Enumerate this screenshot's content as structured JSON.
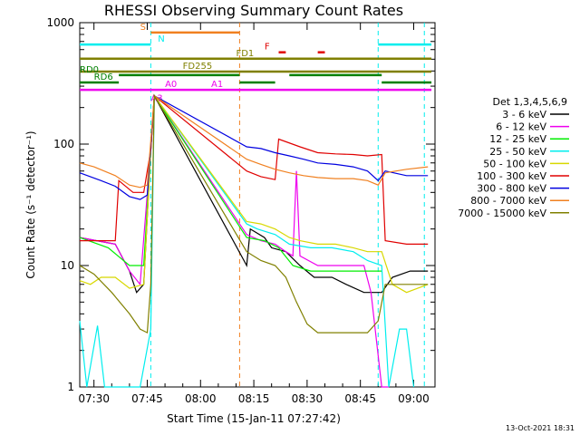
{
  "chart_data": {
    "type": "line",
    "title": "RHESSI Observing Summary Count Rates",
    "xlabel": "Start Time (15-Jan-11 07:27:42)",
    "ylabel": "Count Rate (s⁻¹ detector⁻¹)",
    "y_scale": "log",
    "ylim": [
      1,
      1000
    ],
    "xlim": [
      "07:26",
      "09:06"
    ],
    "x_ticks": [
      "07:30",
      "07:45",
      "08:00",
      "08:15",
      "08:30",
      "08:45",
      "09:00"
    ],
    "y_ticks": [
      "1",
      "10",
      "100",
      "1000"
    ],
    "timestamp": "13-Oct-2021 18:31",
    "legend": {
      "title": "Det 1,3,4,5,6,9",
      "position": "right",
      "entries": [
        {
          "label": "3 - 6 keV",
          "color": "#000000"
        },
        {
          "label": "6 - 12 keV",
          "color": "#ee00ee"
        },
        {
          "label": "12 - 25 keV",
          "color": "#00ee00"
        },
        {
          "label": "25 - 50 keV",
          "color": "#00eeee"
        },
        {
          "label": "50 - 100 keV",
          "color": "#d8d800"
        },
        {
          "label": "100 - 300 keV",
          "color": "#e00000"
        },
        {
          "label": "300 - 800 keV",
          "color": "#0000e0"
        },
        {
          "label": "800 - 7000 keV",
          "color": "#f08020"
        },
        {
          "label": "7000 - 15000 keV",
          "color": "#808000"
        }
      ]
    },
    "series": [
      {
        "label": "3 - 6 keV",
        "color": "#000000",
        "points": [
          [
            "07:26",
            17
          ],
          [
            "07:36",
            15
          ],
          [
            "07:40",
            9
          ],
          [
            "07:42",
            6
          ],
          [
            "07:44",
            7
          ],
          [
            "07:46",
            90
          ],
          [
            "07:47",
            250
          ],
          [
            "08:13",
            10
          ],
          [
            "08:14",
            20
          ],
          [
            "08:18",
            17
          ],
          [
            "08:20",
            14
          ],
          [
            "08:24",
            13
          ],
          [
            "08:28",
            10
          ],
          [
            "08:32",
            8
          ],
          [
            "08:37",
            8
          ],
          [
            "08:41",
            7
          ],
          [
            "08:46",
            6
          ],
          [
            "08:51",
            6
          ],
          [
            "08:54",
            8
          ],
          [
            "08:59",
            9
          ],
          [
            "09:04",
            9
          ]
        ]
      },
      {
        "label": "6 - 12 keV",
        "color": "#ee00ee",
        "points": [
          [
            "07:26",
            17
          ],
          [
            "07:36",
            15
          ],
          [
            "07:40",
            9
          ],
          [
            "07:43",
            7
          ],
          [
            "07:46",
            90
          ],
          [
            "07:47",
            250
          ],
          [
            "08:13",
            18
          ],
          [
            "08:17",
            16
          ],
          [
            "08:21",
            15
          ],
          [
            "08:24",
            13
          ],
          [
            "08:26",
            12
          ],
          [
            "08:27",
            60
          ],
          [
            "08:28",
            12
          ],
          [
            "08:33",
            10
          ],
          [
            "08:38",
            10
          ],
          [
            "08:43",
            10
          ],
          [
            "08:46",
            10
          ],
          [
            "08:48",
            6
          ],
          [
            "08:51",
            1
          ],
          [
            "08:53",
            1
          ]
        ]
      },
      {
        "label": "12 - 25 keV",
        "color": "#00ee00",
        "points": [
          [
            "07:26",
            17
          ],
          [
            "07:34",
            14
          ],
          [
            "07:40",
            10
          ],
          [
            "07:44",
            10
          ],
          [
            "07:46",
            90
          ],
          [
            "07:47",
            250
          ],
          [
            "08:13",
            17
          ],
          [
            "08:18",
            16
          ],
          [
            "08:22",
            14
          ],
          [
            "08:26",
            10
          ],
          [
            "08:31",
            9
          ],
          [
            "08:37",
            9
          ],
          [
            "08:42",
            9
          ],
          [
            "08:47",
            9
          ],
          [
            "08:51",
            9
          ]
        ]
      },
      {
        "label": "25 - 50 keV",
        "color": "#00eeee",
        "points": [
          [
            "07:26",
            3.5
          ],
          [
            "07:28",
            1
          ],
          [
            "07:31",
            3.2
          ],
          [
            "07:33",
            1
          ],
          [
            "07:38",
            1
          ],
          [
            "07:43",
            1
          ],
          [
            "07:46",
            3
          ],
          [
            "07:47",
            250
          ],
          [
            "08:13",
            22
          ],
          [
            "08:16",
            20
          ],
          [
            "08:21",
            18
          ],
          [
            "08:25",
            15
          ],
          [
            "08:31",
            14
          ],
          [
            "08:37",
            14
          ],
          [
            "08:43",
            13
          ],
          [
            "08:47",
            11
          ],
          [
            "08:51",
            10
          ],
          [
            "08:53",
            1
          ],
          [
            "08:56",
            3
          ],
          [
            "08:58",
            3
          ],
          [
            "09:00",
            1
          ]
        ]
      },
      {
        "label": "50 - 100 keV",
        "color": "#d8d800",
        "points": [
          [
            "07:26",
            7.5
          ],
          [
            "07:29",
            7
          ],
          [
            "07:32",
            8
          ],
          [
            "07:36",
            8
          ],
          [
            "07:40",
            6.5
          ],
          [
            "07:44",
            7
          ],
          [
            "07:46",
            90
          ],
          [
            "07:47",
            250
          ],
          [
            "08:13",
            23
          ],
          [
            "08:17",
            22
          ],
          [
            "08:21",
            20
          ],
          [
            "08:25",
            17
          ],
          [
            "08:28",
            16
          ],
          [
            "08:33",
            15
          ],
          [
            "08:38",
            15
          ],
          [
            "08:43",
            14
          ],
          [
            "08:47",
            13
          ],
          [
            "08:51",
            13
          ],
          [
            "08:54",
            7
          ],
          [
            "08:58",
            6
          ],
          [
            "09:04",
            7
          ]
        ]
      },
      {
        "label": "100 - 300 keV",
        "color": "#e00000",
        "points": [
          [
            "07:26",
            16
          ],
          [
            "07:36",
            16
          ],
          [
            "07:37",
            50
          ],
          [
            "07:41",
            40
          ],
          [
            "07:44",
            40
          ],
          [
            "07:46",
            90
          ],
          [
            "07:47",
            250
          ],
          [
            "08:13",
            60
          ],
          [
            "08:17",
            54
          ],
          [
            "08:21",
            51
          ],
          [
            "08:22",
            110
          ],
          [
            "08:28",
            95
          ],
          [
            "08:33",
            85
          ],
          [
            "08:38",
            83
          ],
          [
            "08:43",
            82
          ],
          [
            "08:47",
            80
          ],
          [
            "08:51",
            82
          ],
          [
            "08:52",
            16
          ],
          [
            "08:58",
            15
          ],
          [
            "09:04",
            15
          ]
        ]
      },
      {
        "label": "300 - 800 keV",
        "color": "#0000e0",
        "points": [
          [
            "07:26",
            58
          ],
          [
            "07:32",
            50
          ],
          [
            "07:36",
            45
          ],
          [
            "07:40",
            37
          ],
          [
            "07:43",
            35
          ],
          [
            "07:45",
            38
          ],
          [
            "07:47",
            250
          ],
          [
            "08:13",
            95
          ],
          [
            "08:17",
            92
          ],
          [
            "08:21",
            85
          ],
          [
            "08:25",
            80
          ],
          [
            "08:29",
            75
          ],
          [
            "08:33",
            70
          ],
          [
            "08:38",
            68
          ],
          [
            "08:43",
            65
          ],
          [
            "08:47",
            60
          ],
          [
            "08:50",
            50
          ],
          [
            "08:52",
            60
          ],
          [
            "08:58",
            55
          ],
          [
            "09:04",
            55
          ]
        ]
      },
      {
        "label": "800 - 7000 keV",
        "color": "#f08020",
        "points": [
          [
            "07:26",
            70
          ],
          [
            "07:30",
            65
          ],
          [
            "07:36",
            55
          ],
          [
            "07:40",
            46
          ],
          [
            "07:43",
            44
          ],
          [
            "07:45",
            46
          ],
          [
            "07:47",
            250
          ],
          [
            "08:13",
            75
          ],
          [
            "08:17",
            68
          ],
          [
            "08:21",
            62
          ],
          [
            "08:25",
            58
          ],
          [
            "08:29",
            55
          ],
          [
            "08:33",
            53
          ],
          [
            "08:38",
            52
          ],
          [
            "08:43",
            52
          ],
          [
            "08:47",
            50
          ],
          [
            "08:50",
            46
          ],
          [
            "08:52",
            58
          ],
          [
            "08:58",
            62
          ],
          [
            "09:04",
            65
          ]
        ]
      },
      {
        "label": "7000 - 15000 keV",
        "color": "#808000",
        "points": [
          [
            "07:26",
            10
          ],
          [
            "07:30",
            8.5
          ],
          [
            "07:35",
            6
          ],
          [
            "07:40",
            4
          ],
          [
            "07:43",
            3
          ],
          [
            "07:45",
            2.8
          ],
          [
            "07:46",
            7
          ],
          [
            "07:47",
            250
          ],
          [
            "08:13",
            13
          ],
          [
            "08:17",
            11
          ],
          [
            "08:21",
            10
          ],
          [
            "08:24",
            8
          ],
          [
            "08:27",
            5
          ],
          [
            "08:30",
            3.3
          ],
          [
            "08:33",
            2.8
          ],
          [
            "08:40",
            2.8
          ],
          [
            "08:47",
            2.8
          ],
          [
            "08:50",
            3.5
          ],
          [
            "08:52",
            7
          ],
          [
            "08:58",
            7
          ],
          [
            "09:04",
            7
          ]
        ]
      }
    ],
    "flags": [
      {
        "label": "S",
        "color": "#f08020",
        "y": 830,
        "bar": [
          "07:46",
          "08:11"
        ],
        "label_at": "07:43"
      },
      {
        "label": "N",
        "color": "#00eeee",
        "y": 660,
        "bar": [
          "07:26",
          "07:46"
        ],
        "bar2": [
          "08:50",
          "09:05"
        ],
        "label_at": "07:48"
      },
      {
        "label": "F",
        "color": "#e00000",
        "y": 570,
        "bar": [
          "08:22",
          "08:24"
        ],
        "bar2": [
          "08:33",
          "08:35"
        ],
        "label_at": "08:18"
      },
      {
        "label": "FD1",
        "color": "#808000",
        "y": 505,
        "bar": [
          "07:26",
          "09:05"
        ],
        "label_at": "08:10"
      },
      {
        "label": "FD255",
        "color": "#808000",
        "y": 395,
        "bar": [
          "07:26",
          "09:05"
        ],
        "label_at": "07:55"
      },
      {
        "label": "RD0",
        "color": "#008000",
        "y": 370,
        "bar": [
          "07:37",
          "08:11"
        ],
        "bar2": [
          "08:25",
          "08:51"
        ],
        "label_at": "07:26"
      },
      {
        "label": "RD6",
        "color": "#008000",
        "y": 322,
        "bar": [
          "07:26",
          "07:37"
        ],
        "bar2": [
          "08:11",
          "08:21"
        ],
        "bar3": [
          "08:51",
          "09:05"
        ],
        "label_at": "07:30"
      },
      {
        "label": "A0",
        "color": "#ee00ee",
        "y": 280,
        "label_at": "07:50"
      },
      {
        "label": "A1",
        "color": "#ee00ee",
        "y": 280,
        "bar": [
          "07:26",
          "09:05"
        ],
        "label_at": "08:03"
      },
      {
        "label": "A3",
        "color": "#ee00ee",
        "y": 215,
        "label_at": "07:46"
      }
    ],
    "vlines": [
      {
        "t": "07:46",
        "color": "#00eeee"
      },
      {
        "t": "08:11",
        "color": "#f08020"
      },
      {
        "t": "08:50",
        "color": "#00eeee"
      },
      {
        "t": "09:03",
        "color": "#00eeee"
      }
    ]
  }
}
